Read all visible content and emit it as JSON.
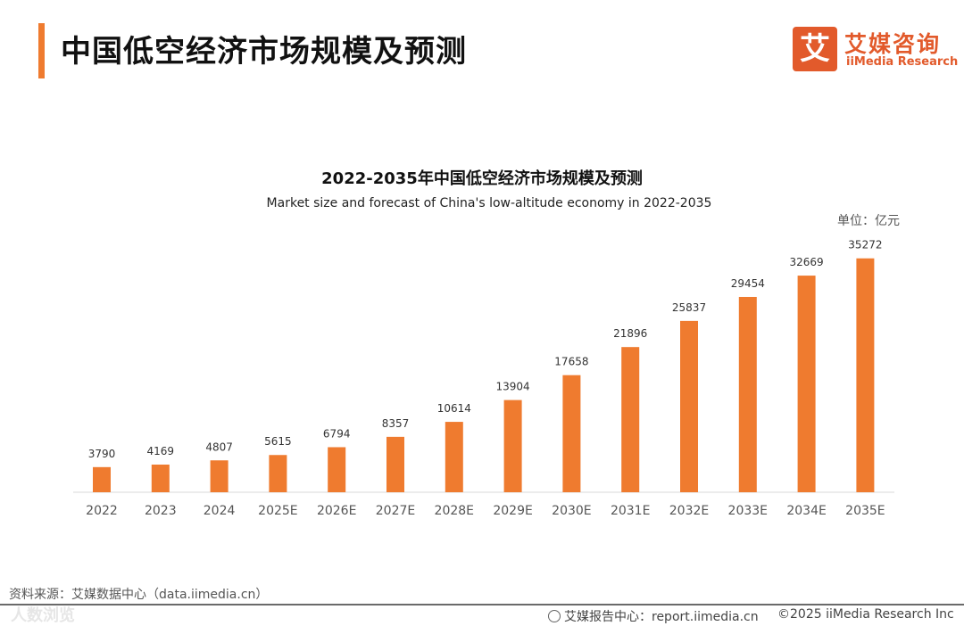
{
  "header": {
    "title": "中国低空经济市场规模及预测",
    "logo_cn": "艾媒咨询",
    "logo_en": "iiMedia Research",
    "logo_mark": "艾"
  },
  "unit_label": "单位：亿元",
  "chart_data": {
    "type": "bar",
    "title": "2022-2035年中国低空经济市场规模及预测",
    "subtitle": "Market size and forecast of China's low-altitude economy in 2022-2035",
    "categories": [
      "2022",
      "2023",
      "2024",
      "2025E",
      "2026E",
      "2027E",
      "2028E",
      "2029E",
      "2030E",
      "2031E",
      "2032E",
      "2033E",
      "2034E",
      "2035E"
    ],
    "values": [
      3790,
      4169,
      4807,
      5615,
      6794,
      8357,
      10614,
      13904,
      17658,
      21896,
      25837,
      29454,
      32669,
      35272
    ],
    "ylim": [
      0,
      39000
    ],
    "grid": false,
    "legend": "none",
    "bar_color": "#ef7b2f"
  },
  "footer": {
    "source": "资料来源：艾媒数据中心（data.iimedia.cn）",
    "watermark": "人数浏览",
    "report": "艾媒报告中心：report.iimedia.cn",
    "copyright": "©2025  iiMedia Research Inc"
  }
}
